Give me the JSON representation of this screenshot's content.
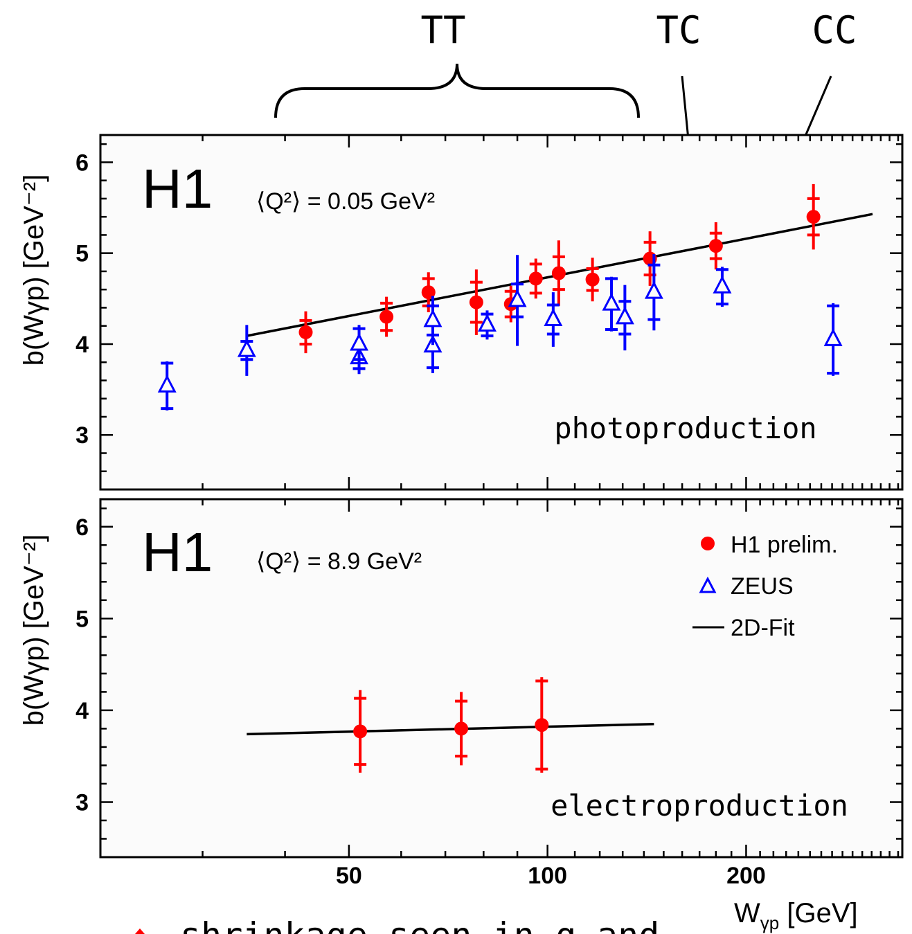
{
  "annotations": {
    "tt": "TT",
    "tc": "TC",
    "cc": "CC",
    "bottom_caption": "shrinkage seen in q and"
  },
  "colors": {
    "h1": "#ff0000",
    "zeus": "#0000ff",
    "fit": "#000000",
    "panel_bg": "#fbfbfb"
  },
  "xaxis": {
    "label_main": "W",
    "label_sub": "γp",
    "label_unit": " [GeV]",
    "ticks": [
      {
        "value": 50,
        "label": "50"
      },
      {
        "value": 100,
        "label": "100"
      },
      {
        "value": 200,
        "label": "200"
      }
    ],
    "scale": "log",
    "range": [
      21,
      345
    ]
  },
  "chart_data": [
    {
      "type": "scatter",
      "panel": "top",
      "experiment_label": "H1",
      "q2_label": "⟨Q²⟩ = 0.05 GeV²",
      "process_label": "photoproduction",
      "ylabel": "b(Wγp) [GeV⁻²]",
      "ylim": [
        2.4,
        6.3
      ],
      "yticks": [
        3,
        4,
        5,
        6
      ],
      "xscale": "log",
      "series": [
        {
          "name": "H1 prelim.",
          "marker": "circle",
          "points": [
            {
              "x": 43,
              "y": 4.13,
              "err_stat": 0.13,
              "err_tot": 0.23
            },
            {
              "x": 57,
              "y": 4.3,
              "err_stat": 0.15,
              "err_tot": 0.22
            },
            {
              "x": 66,
              "y": 4.57,
              "err_stat": 0.15,
              "err_tot": 0.22
            },
            {
              "x": 78,
              "y": 4.46,
              "err_stat": 0.22,
              "err_tot": 0.36
            },
            {
              "x": 88,
              "y": 4.44,
              "err_stat": 0.14,
              "err_tot": 0.2
            },
            {
              "x": 96,
              "y": 4.72,
              "err_stat": 0.16,
              "err_tot": 0.22
            },
            {
              "x": 104,
              "y": 4.78,
              "err_stat": 0.18,
              "err_tot": 0.36
            },
            {
              "x": 117,
              "y": 4.71,
              "err_stat": 0.12,
              "err_tot": 0.24
            },
            {
              "x": 143,
              "y": 4.94,
              "err_stat": 0.18,
              "err_tot": 0.3
            },
            {
              "x": 180,
              "y": 5.08,
              "err_stat": 0.14,
              "err_tot": 0.26
            },
            {
              "x": 253,
              "y": 5.4,
              "err_stat": 0.2,
              "err_tot": 0.36
            }
          ]
        },
        {
          "name": "ZEUS",
          "marker": "triangle",
          "points": [
            {
              "x": 26.5,
              "y": 3.54,
              "err_stat": 0.25,
              "err_tot": 0.27
            },
            {
              "x": 35,
              "y": 3.93,
              "err_stat": 0.1,
              "err_tot": 0.28
            },
            {
              "x": 51.8,
              "y": 3.85,
              "err_stat": 0.12,
              "err_tot": 0.18
            },
            {
              "x": 51.8,
              "y": 4.0,
              "err_stat": 0.17,
              "err_tot": 0.21
            },
            {
              "x": 67,
              "y": 3.98,
              "err_stat": 0.24,
              "err_tot": 0.3
            },
            {
              "x": 67,
              "y": 4.26,
              "err_stat": 0.16,
              "err_tot": 0.27
            },
            {
              "x": 81,
              "y": 4.21,
              "err_stat": 0.12,
              "err_tot": 0.16
            },
            {
              "x": 90,
              "y": 4.48,
              "err_stat": 0.18,
              "err_tot": 0.5
            },
            {
              "x": 102,
              "y": 4.27,
              "err_stat": 0.16,
              "err_tot": 0.3
            },
            {
              "x": 125,
              "y": 4.44,
              "err_stat": 0.28,
              "err_tot": 0.3
            },
            {
              "x": 131,
              "y": 4.29,
              "err_stat": 0.18,
              "err_tot": 0.36
            },
            {
              "x": 145,
              "y": 4.57,
              "err_stat": 0.3,
              "err_tot": 0.42
            },
            {
              "x": 184,
              "y": 4.63,
              "err_stat": 0.19,
              "err_tot": 0.22
            },
            {
              "x": 271,
              "y": 4.05,
              "err_stat": 0.37,
              "err_tot": 0.4
            }
          ]
        }
      ],
      "fit": {
        "name": "2D-Fit",
        "x_start": 35,
        "x_end": 311,
        "y_start": 4.09,
        "y_end": 5.43
      }
    },
    {
      "type": "scatter",
      "panel": "bottom",
      "experiment_label": "H1",
      "q2_label": "⟨Q²⟩ = 8.9 GeV²",
      "process_label": "electroproduction",
      "ylabel": "b(Wγp) [GeV⁻²]",
      "ylim": [
        2.4,
        6.3
      ],
      "yticks": [
        3,
        4,
        5,
        6
      ],
      "xscale": "log",
      "series": [
        {
          "name": "H1 prelim.",
          "marker": "circle",
          "points": [
            {
              "x": 52,
              "y": 3.77,
              "err_stat": 0.36,
              "err_tot": 0.45
            },
            {
              "x": 74,
              "y": 3.8,
              "err_stat": 0.3,
              "err_tot": 0.4
            },
            {
              "x": 98,
              "y": 3.84,
              "err_stat": 0.48,
              "err_tot": 0.52
            }
          ]
        }
      ],
      "fit": {
        "name": "2D-Fit",
        "x_start": 35,
        "x_end": 145,
        "y_start": 3.74,
        "y_end": 3.85
      },
      "legend": {
        "position": "top-right",
        "entries": [
          {
            "label": "H1 prelim.",
            "marker": "circle"
          },
          {
            "label": "ZEUS",
            "marker": "triangle"
          },
          {
            "label": "2D-Fit",
            "marker": "line"
          }
        ]
      }
    }
  ]
}
